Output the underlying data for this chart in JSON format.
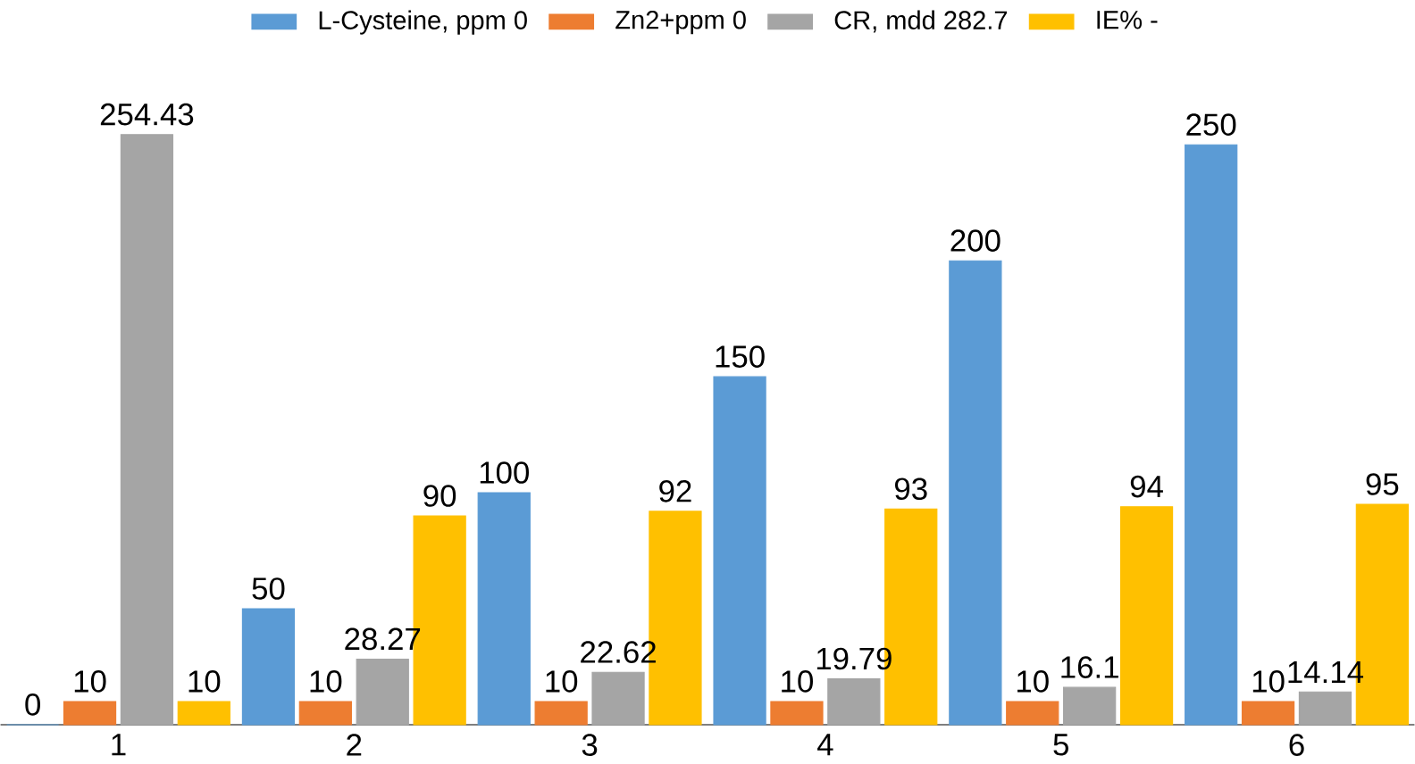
{
  "chart_data": {
    "type": "bar",
    "categories": [
      "1",
      "2",
      "3",
      "4",
      "5",
      "6"
    ],
    "series": [
      {
        "name": "L-Cysteine, ppm 0",
        "color": "#5b9bd5",
        "values": [
          0,
          50,
          100,
          150,
          200,
          250
        ]
      },
      {
        "name": "Zn2+ppm 0",
        "color": "#ed7d31",
        "values": [
          10,
          10,
          10,
          10,
          10,
          10
        ]
      },
      {
        "name": "CR, mdd 282.7",
        "color": "#a5a5a5",
        "values": [
          254.43,
          28.27,
          22.62,
          19.79,
          16.1,
          14.14
        ]
      },
      {
        "name": "IE% -",
        "color": "#ffc000",
        "values": [
          10,
          90,
          92,
          93,
          94,
          95
        ]
      }
    ],
    "data_labels": true,
    "legend": "top"
  }
}
